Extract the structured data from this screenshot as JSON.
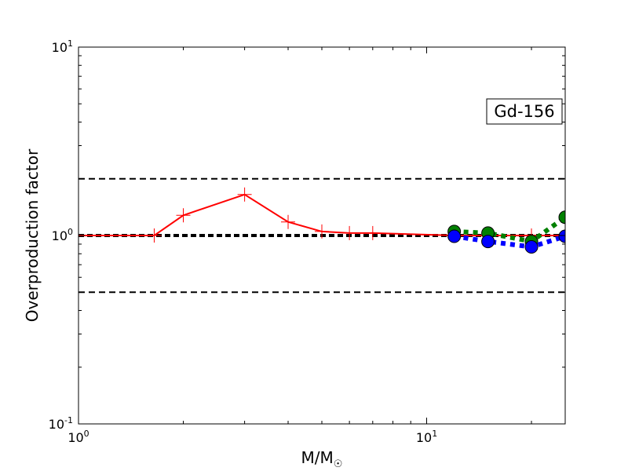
{
  "chart_data": {
    "type": "line",
    "xscale": "log",
    "yscale": "log",
    "xlim": [
      1,
      25
    ],
    "ylim": [
      0.1,
      10
    ],
    "x_ticks": [
      {
        "value": 1,
        "base": "10",
        "exp": "0"
      },
      {
        "value": 10,
        "base": "10",
        "exp": "1"
      }
    ],
    "y_ticks": [
      {
        "value": 0.1,
        "base": "10",
        "exp": "-1"
      },
      {
        "value": 1,
        "base": "10",
        "exp": "0"
      },
      {
        "value": 10,
        "base": "10",
        "exp": "1"
      }
    ],
    "xlabel": {
      "main": "M/M",
      "sub": "☉"
    },
    "ylabel": "Overproduction factor",
    "annotation": "Gd-156",
    "reference_lines": [
      {
        "y": 2.0,
        "style": "dashed"
      },
      {
        "y": 1.0,
        "style": "dashed-thick"
      },
      {
        "y": 0.5,
        "style": "dashed"
      }
    ],
    "series": [
      {
        "color": "#ff0000",
        "marker": "plus",
        "line": "solid",
        "x": [
          1.0,
          1.65,
          2.0,
          3.0,
          4.0,
          5.0,
          6.0,
          7.0,
          12.0,
          15.0,
          20.0,
          25.0
        ],
        "y": [
          1.0,
          1.0,
          1.28,
          1.65,
          1.18,
          1.05,
          1.03,
          1.03,
          1.0,
          1.0,
          1.0,
          1.0
        ]
      },
      {
        "color": "#008000",
        "marker": "circle",
        "line": "dotted",
        "x": [
          12,
          15,
          20,
          25
        ],
        "y": [
          1.05,
          1.03,
          0.93,
          1.25
        ]
      },
      {
        "color": "#0000ff",
        "marker": "circle",
        "line": "dotted",
        "x": [
          12,
          15,
          20,
          25
        ],
        "y": [
          0.99,
          0.93,
          0.87,
          0.99
        ]
      }
    ]
  }
}
